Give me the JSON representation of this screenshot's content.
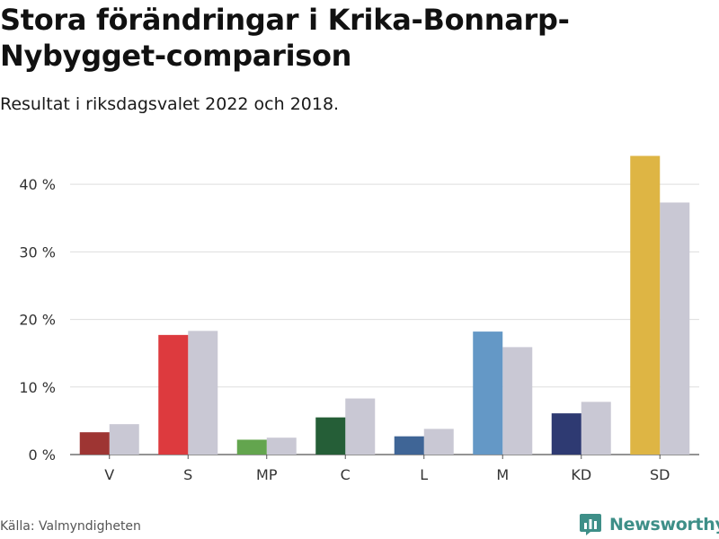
{
  "header": {
    "title": "Stora förändringar i Krika-Bonnarp-Nybygget-comparison",
    "subtitle": "Resultat i riksdagsvalet 2022 och 2018."
  },
  "footer": {
    "source": "Källa: Valmyndigheten",
    "brand": "Newsworthy",
    "brand_icon": "bar-chart-icon",
    "brand_color": "#3e8f88"
  },
  "chart_data": {
    "type": "bar",
    "categories": [
      "V",
      "S",
      "MP",
      "C",
      "L",
      "M",
      "KD",
      "SD"
    ],
    "series": [
      {
        "values": [
          3.3,
          17.7,
          2.2,
          5.5,
          2.7,
          18.2,
          6.1,
          44.2
        ],
        "colors": [
          "#9e3533",
          "#dd3a3e",
          "#63a54e",
          "#255e37",
          "#3f6596",
          "#6498c6",
          "#2e3a72",
          "#deb544"
        ]
      },
      {
        "values": [
          4.5,
          18.3,
          2.5,
          8.3,
          3.8,
          15.9,
          7.8,
          37.3
        ],
        "color": "#c9c8d4"
      }
    ],
    "yticks": [
      0,
      10,
      20,
      30,
      40
    ],
    "ytick_labels": [
      "0 %",
      "10 %",
      "20 %",
      "30 %",
      "40 %"
    ],
    "ylim": [
      0,
      46
    ],
    "xlabel": "",
    "ylabel": "",
    "grid": true,
    "grid_color": "#dddddd",
    "legend": "none"
  }
}
